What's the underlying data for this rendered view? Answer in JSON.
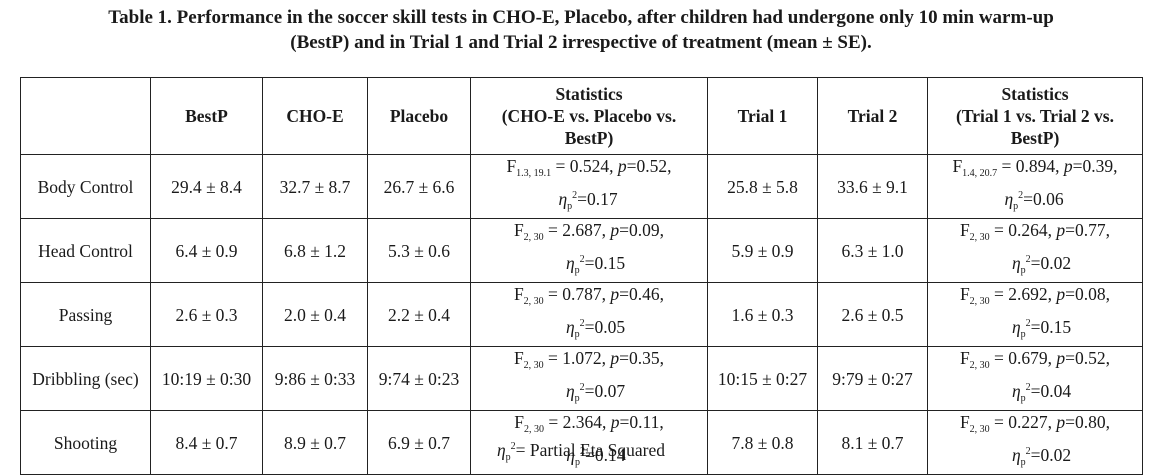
{
  "caption": {
    "line1": "Table 1. Performance in the soccer skill tests in CHO-E, Placebo, after children had undergone only 10 min warm-up",
    "line2": "(BestP) and in Trial 1 and Trial 2 irrespective of treatment (mean ± SE)."
  },
  "table": {
    "headers": {
      "bestp": "BestP",
      "choe": "CHO-E",
      "placebo": "Placebo",
      "stats1": [
        "Statistics",
        "(CHO-E vs. Placebo vs.",
        "BestP)"
      ],
      "trial1": "Trial 1",
      "trial2": "Trial 2",
      "stats2": [
        "Statistics",
        "(Trial 1 vs. Trial 2 vs.",
        "BestP)"
      ]
    },
    "rows": [
      {
        "label": "Body Control",
        "bestp": "29.4 ± 8.4",
        "choe": "32.7 ± 8.7",
        "placebo": "26.7 ± 6.6",
        "s1_df": "1.3, 19.1",
        "s1_rest": " = 0.524, ",
        "s1_p": "=0.52,",
        "s1_eta": "=0.17",
        "trial1": "25.8 ± 5.8",
        "trial2": "33.6 ± 9.1",
        "s2_df": "1.4, 20.7",
        "s2_rest": " = 0.894, ",
        "s2_p": "=0.39,",
        "s2_eta": "=0.06"
      },
      {
        "label": "Head Control",
        "bestp": "6.4 ± 0.9",
        "choe": "6.8 ± 1.2",
        "placebo": "5.3 ± 0.6",
        "s1_df": "2, 30",
        "s1_rest": " = 2.687, ",
        "s1_p": "=0.09,",
        "s1_eta": "=0.15",
        "trial1": "5.9 ± 0.9",
        "trial2": "6.3 ± 1.0",
        "s2_df": "2, 30",
        "s2_rest": " = 0.264, ",
        "s2_p": "=0.77,",
        "s2_eta": "=0.02"
      },
      {
        "label": "Passing",
        "bestp": "2.6 ± 0.3",
        "choe": "2.0 ± 0.4",
        "placebo": "2.2 ± 0.4",
        "s1_df": "2, 30",
        "s1_rest": " = 0.787, ",
        "s1_p": "=0.46,",
        "s1_eta": "=0.05",
        "trial1": "1.6 ± 0.3",
        "trial2": "2.6 ± 0.5",
        "s2_df": "2, 30",
        "s2_rest": " = 2.692, ",
        "s2_p": "=0.08,",
        "s2_eta": "=0.15"
      },
      {
        "label": "Dribbling (sec)",
        "bestp": "10:19 ± 0:30",
        "choe": "9:86 ± 0:33",
        "placebo": "9:74 ± 0:23",
        "s1_df": "2, 30",
        "s1_rest": " = 1.072, ",
        "s1_p": "=0.35,",
        "s1_eta": "=0.07",
        "trial1": "10:15 ± 0:27",
        "trial2": "9:79 ± 0:27",
        "s2_df": "2, 30",
        "s2_rest": " = 0.679, ",
        "s2_p": "=0.52,",
        "s2_eta": "=0.04"
      },
      {
        "label": "Shooting",
        "bestp": "8.4 ± 0.7",
        "choe": "8.9 ± 0.7",
        "placebo": "6.9 ± 0.7",
        "s1_df": "2, 30",
        "s1_rest": " = 2.364, ",
        "s1_p": "=0.11,",
        "s1_eta": "=0.14",
        "trial1": "7.8 ± 0.8",
        "trial2": "8.1 ± 0.7",
        "s2_df": "2, 30",
        "s2_rest": " = 0.227, ",
        "s2_p": "=0.80,",
        "s2_eta": "=0.02"
      }
    ]
  },
  "symbols": {
    "F": "F",
    "p": "p",
    "eta": "η",
    "eta_sub": "p",
    "squared": "2"
  },
  "footnote": {
    "text": "= Partial Eta Squared"
  }
}
